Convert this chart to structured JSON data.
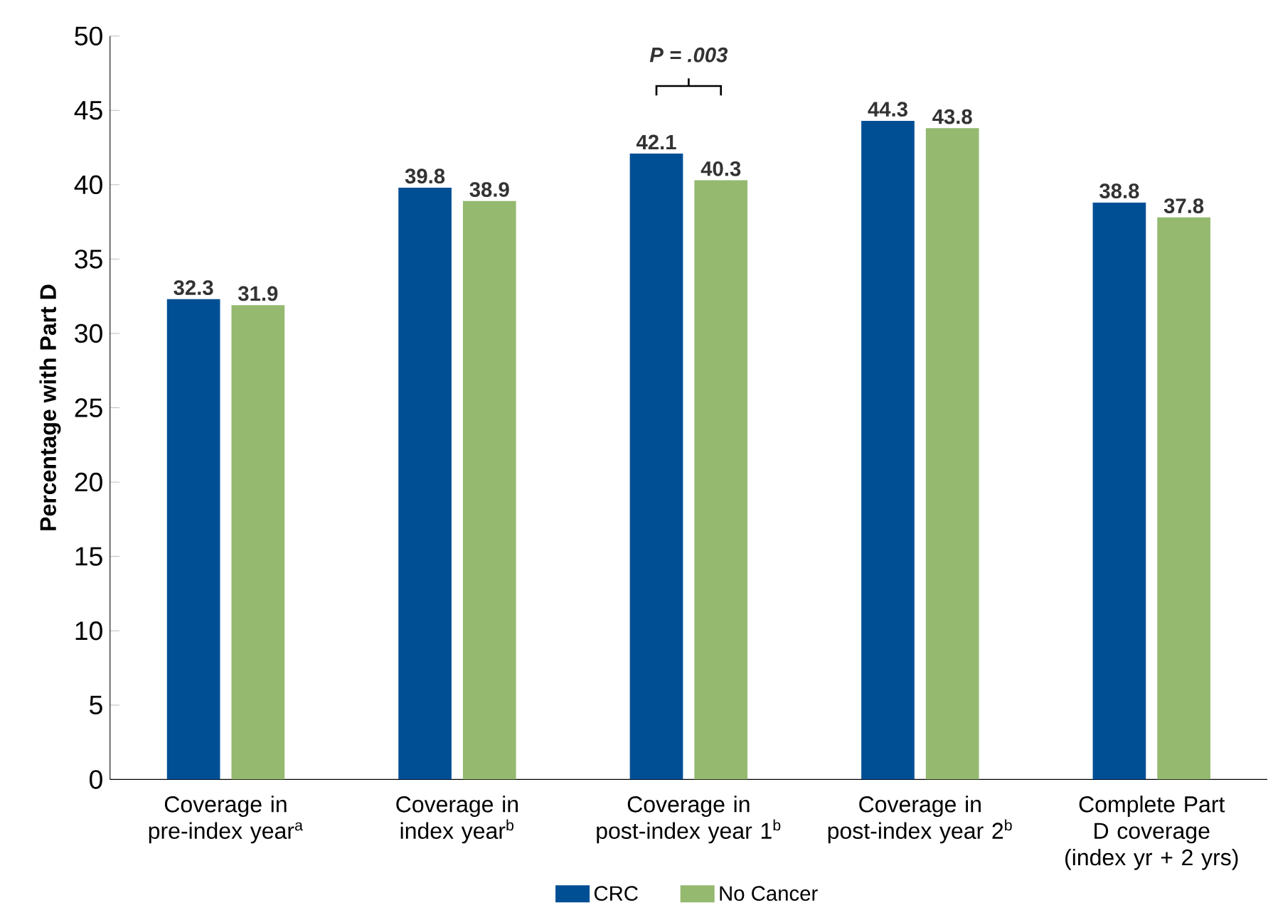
{
  "chart_data": {
    "type": "bar",
    "ylabel": "Percentage with Part D",
    "categories": [
      "Coverage in pre-index year$^{a}$",
      "Coverage in index year$^{b}$",
      "Coverage in post-index year 1$^{b}$",
      "Coverage in post-index year 2$^{b}$",
      "Complete Part D coverage (index yr + 2 yrs)"
    ],
    "series": [
      {
        "name": "CRC",
        "color": "#004f95",
        "values": [
          32.3,
          39.8,
          42.1,
          44.3,
          38.8
        ]
      },
      {
        "name": "No Cancer",
        "color": "#94b96f",
        "values": [
          31.9,
          38.9,
          40.3,
          43.8,
          37.8
        ]
      }
    ],
    "ylim": [
      0,
      50
    ],
    "yticks": [
      0,
      5,
      10,
      15,
      20,
      25,
      30,
      35,
      40,
      45,
      50
    ],
    "data_labels": true,
    "legend": "bottom",
    "annotations": [
      "P = .003"
    ]
  }
}
